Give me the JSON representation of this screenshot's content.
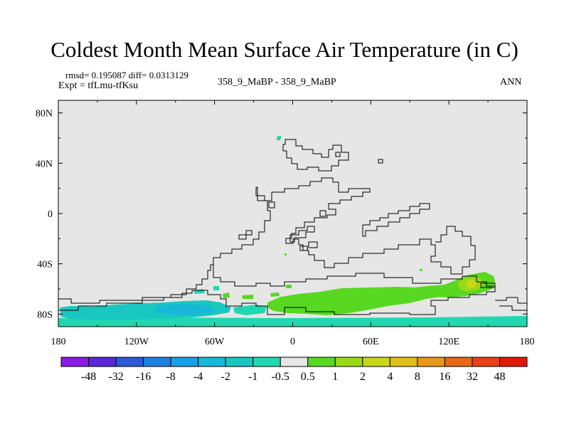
{
  "title": "Coldest Month Mean Surface Air Temperature (in C)",
  "stats": "rmsd= 0.195087 diff= 0.0313129",
  "expt": "Expt = tfLmu-tfKsu",
  "cases": "358_9_MaBP - 358_9_MaBP",
  "season": "ANN",
  "chart_data": {
    "type": "heatmap",
    "title": "Coldest Month Mean Surface Air Temperature (in C)",
    "xlim": [
      -180,
      180
    ],
    "ylim": [
      -90,
      90
    ],
    "x_ticks": [
      {
        "value": -180,
        "label": "180"
      },
      {
        "value": -120,
        "label": "120W"
      },
      {
        "value": -60,
        "label": "60W"
      },
      {
        "value": 0,
        "label": "0"
      },
      {
        "value": 60,
        "label": "60E"
      },
      {
        "value": 120,
        "label": "120E"
      },
      {
        "value": 180,
        "label": "180"
      }
    ],
    "y_ticks": [
      {
        "value": 80,
        "label": "80N"
      },
      {
        "value": 40,
        "label": "40N"
      },
      {
        "value": 0,
        "label": "0"
      },
      {
        "value": -40,
        "label": "40S"
      },
      {
        "value": -80,
        "label": "80S"
      }
    ],
    "background_color": "#e6e6e6",
    "colorbar": {
      "levels": [
        "-48",
        "-32",
        "-16",
        "-8",
        "-4",
        "-2",
        "-1",
        "-0.5",
        "0.5",
        "1",
        "2",
        "4",
        "8",
        "16",
        "32",
        "48"
      ],
      "colors": [
        "#8a1ae6",
        "#5a28d8",
        "#2a5ad6",
        "#1e7fe0",
        "#1aa0e8",
        "#18b8d8",
        "#18c8c0",
        "#20d8b0",
        "#e6e6e6",
        "#58d820",
        "#9ad818",
        "#c8d818",
        "#e0c018",
        "#e89818",
        "#e86818",
        "#e84018",
        "#e01a0a"
      ]
    },
    "anomaly_regions": [
      {
        "bin": "-2",
        "lon": [
          -175,
          -50
        ],
        "lat": [
          -86,
          -80
        ]
      },
      {
        "bin": "-2",
        "lon": [
          -110,
          -85
        ],
        "lat": [
          -80,
          -76
        ]
      },
      {
        "bin": "-1",
        "lon": [
          -180,
          180
        ],
        "lat": [
          -90,
          -84
        ]
      },
      {
        "bin": "-1",
        "lon": [
          -50,
          -20
        ],
        "lat": [
          -84,
          -78
        ]
      },
      {
        "bin": "1",
        "lon": [
          -5,
          110
        ],
        "lat": [
          -82,
          -70
        ]
      },
      {
        "bin": "1",
        "lon": [
          110,
          155
        ],
        "lat": [
          -72,
          -60
        ]
      },
      {
        "bin": "2",
        "lon": [
          136,
          151
        ],
        "lat": [
          -68,
          -59
        ]
      },
      {
        "bin": "4",
        "lon": [
          139,
          147
        ],
        "lat": [
          -65,
          -60
        ]
      }
    ],
    "coastlines": "continental outlines drawn as stepped black lines"
  }
}
